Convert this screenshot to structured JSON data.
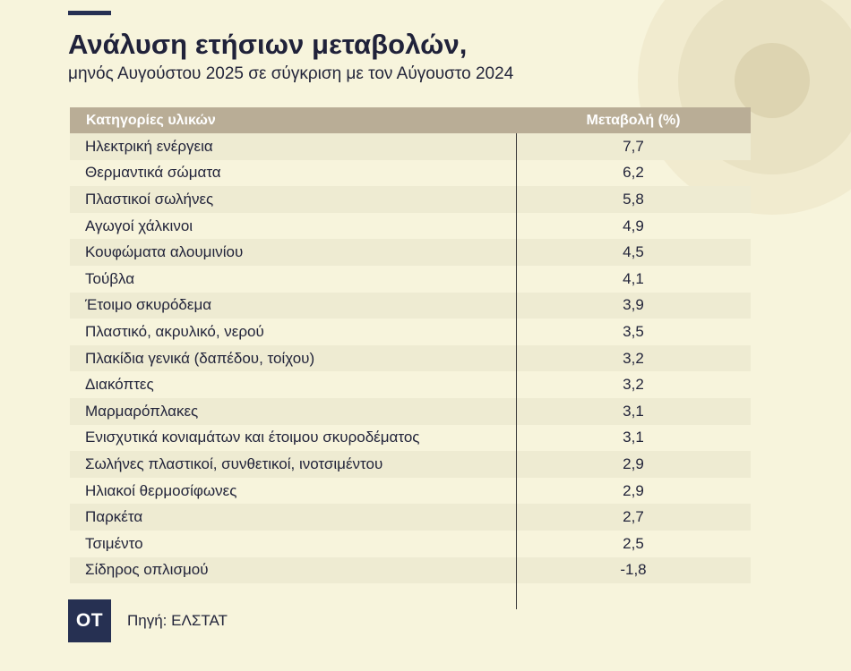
{
  "header": {
    "title": "Ανάλυση ετήσιων μεταβολών,",
    "subtitle": "μηνός Αυγούστου 2025 σε σύγκριση με τον Αύγουστο 2024"
  },
  "chart_data": {
    "type": "table",
    "columns": [
      "Κατηγορίες υλικών",
      "Μεταβολή (%)"
    ],
    "rows": [
      {
        "category": "Ηλεκτρική ενέργεια",
        "value": "7,7"
      },
      {
        "category": "Θερμαντικά σώματα",
        "value": "6,2"
      },
      {
        "category": "Πλαστικοί σωλήνες",
        "value": "5,8"
      },
      {
        "category": "Αγωγοί χάλκινοι",
        "value": "4,9"
      },
      {
        "category": "Κουφώματα αλουμινίου",
        "value": "4,5"
      },
      {
        "category": "Τούβλα",
        "value": "4,1"
      },
      {
        "category": "Έτοιμο σκυρόδεμα",
        "value": "3,9"
      },
      {
        "category": "Πλαστικό, ακρυλικό, νερού",
        "value": "3,5"
      },
      {
        "category": "Πλακίδια γενικά (δαπέδου, τοίχου)",
        "value": "3,2"
      },
      {
        "category": "Διακόπτες",
        "value": "3,2"
      },
      {
        "category": "Μαρμαρόπλακες",
        "value": "3,1"
      },
      {
        "category": "Ενισχυτικά κονιαμάτων και έτοιμου σκυροδέματος",
        "value": "3,1"
      },
      {
        "category": "Σωλήνες πλαστικοί, συνθετικοί, ινοτσιμέντου",
        "value": "2,9"
      },
      {
        "category": "Ηλιακοί θερμοσίφωνες",
        "value": "2,9"
      },
      {
        "category": "Παρκέτα",
        "value": "2,7"
      },
      {
        "category": "Τσιμέντο",
        "value": "2,5"
      },
      {
        "category": "Σίδηρος οπλισμού",
        "value": "-1,8"
      }
    ]
  },
  "footer": {
    "logo": "ΟΤ",
    "source": "Πηγή: ΕΛΣΤΑΤ"
  },
  "colors": {
    "background": "#f7f4dc",
    "header_bg": "#b9ad96",
    "stripe": "#eeebd2",
    "brand": "#263052"
  }
}
